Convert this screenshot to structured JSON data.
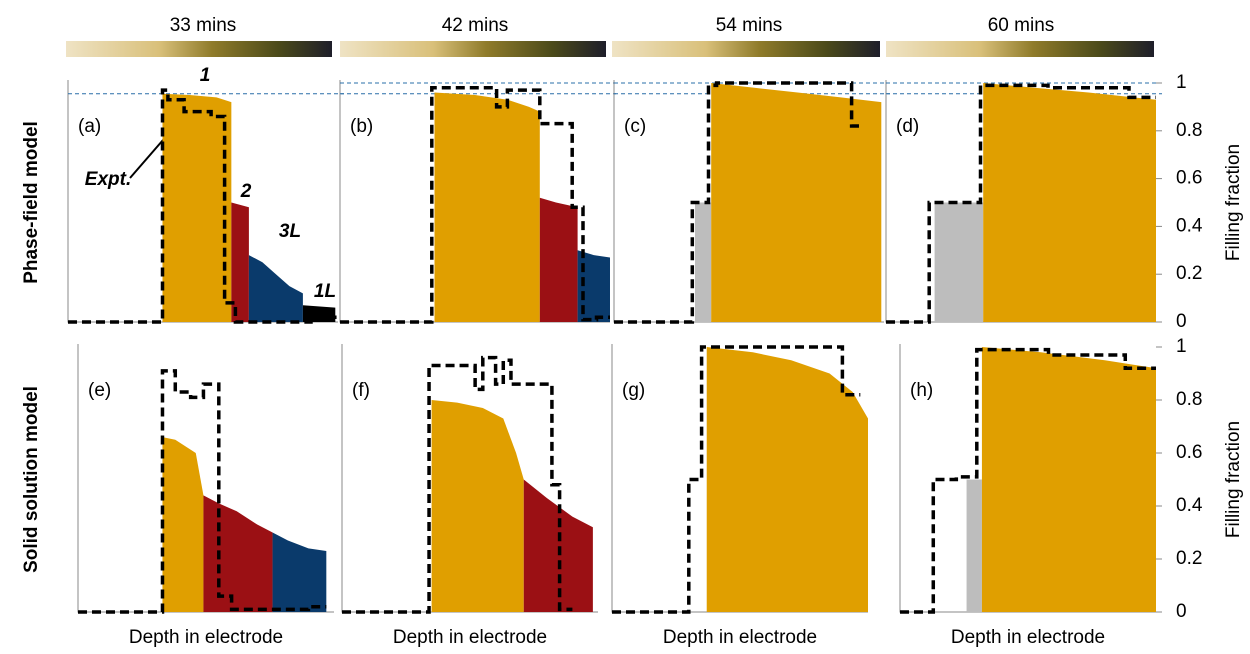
{
  "chart_data": [
    {
      "type": "area",
      "title": "33 mins",
      "row_label": "Phase-field model",
      "panel_label": "(a)",
      "xlim": [
        0,
        1
      ],
      "ylim": [
        0,
        1
      ],
      "reference_lines": [
        0.955
      ],
      "annotations": [
        {
          "text": "1",
          "color": "#e09f00"
        },
        {
          "text": "2",
          "color": "#9b1014"
        },
        {
          "text": "3L",
          "color": "#0a3a6b"
        },
        {
          "text": "1L",
          "color": "#000000"
        },
        {
          "text": "Expt.",
          "color": "#000000"
        }
      ],
      "series": [
        {
          "color": "#e09f00",
          "style": "fill",
          "x": [
            0.35,
            0.45,
            0.55,
            0.605
          ],
          "values": [
            0.955,
            0.95,
            0.94,
            0.92
          ]
        },
        {
          "color": "#9b1014",
          "style": "fill",
          "x": [
            0.605,
            0.67
          ],
          "values": [
            0.5,
            0.48
          ]
        },
        {
          "color": "#0a3a6b",
          "style": "fill",
          "x": [
            0.67,
            0.72,
            0.77,
            0.82,
            0.87
          ],
          "values": [
            0.28,
            0.25,
            0.2,
            0.15,
            0.12
          ]
        },
        {
          "color": "#000000",
          "style": "fill",
          "x": [
            0.87,
            0.99
          ],
          "values": [
            0.07,
            0.06
          ]
        },
        {
          "color": "#000000",
          "style": "dashed",
          "x": [
            0,
            0.35,
            0.35,
            0.37,
            0.37,
            0.43,
            0.43,
            0.53,
            0.53,
            0.58,
            0.58,
            0.62,
            0.62,
            0.9,
            0.9,
            1
          ],
          "values": [
            0,
            0,
            0.97,
            0.97,
            0.93,
            0.93,
            0.88,
            0.88,
            0.86,
            0.86,
            0.08,
            0.08,
            0,
            0,
            0.02,
            0.02
          ]
        }
      ]
    },
    {
      "type": "area",
      "title": "42 mins",
      "panel_label": "(b)",
      "xlim": [
        0,
        1
      ],
      "ylim": [
        0,
        1
      ],
      "reference_lines": [
        0.955,
        1
      ],
      "series": [
        {
          "color": "#e09f00",
          "style": "fill",
          "x": [
            0.35,
            0.5,
            0.62,
            0.7,
            0.74
          ],
          "values": [
            0.96,
            0.95,
            0.93,
            0.9,
            0.88
          ]
        },
        {
          "color": "#9b1014",
          "style": "fill",
          "x": [
            0.74,
            0.8,
            0.88
          ],
          "values": [
            0.52,
            0.5,
            0.48
          ]
        },
        {
          "color": "#0a3a6b",
          "style": "fill",
          "x": [
            0.88,
            0.94,
            1
          ],
          "values": [
            0.3,
            0.28,
            0.27
          ]
        },
        {
          "color": "#000000",
          "style": "dashed",
          "x": [
            0,
            0.34,
            0.34,
            0.58,
            0.58,
            0.62,
            0.62,
            0.74,
            0.74,
            0.86,
            0.86,
            0.9,
            0.9,
            0.95,
            0.95,
            1
          ],
          "values": [
            0,
            0,
            0.98,
            0.98,
            0.9,
            0.9,
            0.97,
            0.97,
            0.83,
            0.83,
            0.48,
            0.48,
            0.01,
            0.01,
            0.02,
            0.02
          ]
        }
      ]
    },
    {
      "type": "area",
      "title": "54 mins",
      "panel_label": "(c)",
      "xlim": [
        0,
        1
      ],
      "ylim": [
        0,
        1
      ],
      "reference_lines": [
        0.955,
        1
      ],
      "series": [
        {
          "color": "#bdbdbd",
          "style": "fill",
          "x": [
            0.3,
            0.36
          ],
          "values": [
            0.5,
            0.5
          ]
        },
        {
          "color": "#e09f00",
          "style": "fill",
          "x": [
            0.36,
            0.52,
            0.68,
            0.84,
            0.99
          ],
          "values": [
            1,
            0.98,
            0.96,
            0.94,
            0.92
          ]
        },
        {
          "color": "#000000",
          "style": "dashed",
          "x": [
            0,
            0.29,
            0.29,
            0.35,
            0.35,
            0.38,
            0.38,
            0.88,
            0.88,
            0.92
          ],
          "values": [
            0,
            0,
            0.5,
            0.5,
            0.99,
            0.99,
            1,
            1,
            0.82,
            0.82
          ]
        }
      ]
    },
    {
      "type": "area",
      "title": "60 mins",
      "panel_label": "(d)",
      "ylabel": "Filling fraction",
      "xlim": [
        0,
        1
      ],
      "ylim": [
        0,
        1
      ],
      "reference_lines": [
        0.955,
        1
      ],
      "yticks": [
        0,
        0.2,
        0.4,
        0.6,
        0.8,
        1
      ],
      "series": [
        {
          "color": "#bdbdbd",
          "style": "fill",
          "x": [
            0.18,
            0.36
          ],
          "values": [
            0.5,
            0.5
          ]
        },
        {
          "color": "#e09f00",
          "style": "fill",
          "x": [
            0.36,
            0.55,
            0.75,
            1
          ],
          "values": [
            1,
            0.98,
            0.96,
            0.93
          ]
        },
        {
          "color": "#000000",
          "style": "dashed",
          "x": [
            0,
            0.16,
            0.16,
            0.35,
            0.35,
            0.6,
            0.6,
            0.9,
            0.9,
            1
          ],
          "values": [
            0,
            0,
            0.5,
            0.5,
            0.99,
            0.99,
            0.98,
            0.98,
            0.94,
            0.94
          ]
        }
      ]
    },
    {
      "type": "area",
      "row_label": "Solid solution model",
      "panel_label": "(e)",
      "xlabel": "Depth in electrode",
      "xlim": [
        0,
        1
      ],
      "ylim": [
        0,
        1
      ],
      "series": [
        {
          "color": "#e09f00",
          "style": "fill",
          "x": [
            0.33,
            0.38,
            0.46,
            0.49
          ],
          "values": [
            0.66,
            0.65,
            0.6,
            0.44
          ]
        },
        {
          "color": "#9b1014",
          "style": "fill",
          "x": [
            0.49,
            0.55,
            0.62,
            0.7,
            0.76
          ],
          "values": [
            0.44,
            0.41,
            0.38,
            0.33,
            0.3
          ]
        },
        {
          "color": "#0a3a6b",
          "style": "fill",
          "x": [
            0.76,
            0.82,
            0.9,
            0.97
          ],
          "values": [
            0.3,
            0.27,
            0.24,
            0.23
          ]
        },
        {
          "color": "#000000",
          "style": "dashed",
          "x": [
            0,
            0.33,
            0.33,
            0.38,
            0.38,
            0.44,
            0.44,
            0.49,
            0.49,
            0.55,
            0.55,
            0.6,
            0.6,
            0.9,
            0.9,
            0.97
          ],
          "values": [
            0,
            0,
            0.91,
            0.91,
            0.83,
            0.83,
            0.81,
            0.81,
            0.86,
            0.86,
            0.06,
            0.06,
            0.01,
            0.01,
            0.02,
            0.02
          ]
        }
      ]
    },
    {
      "type": "area",
      "panel_label": "(f)",
      "xlabel": "Depth in electrode",
      "xlim": [
        0,
        1
      ],
      "ylim": [
        0,
        1
      ],
      "series": [
        {
          "color": "#e09f00",
          "style": "fill",
          "x": [
            0.35,
            0.45,
            0.55,
            0.63,
            0.68,
            0.71
          ],
          "values": [
            0.8,
            0.79,
            0.77,
            0.73,
            0.6,
            0.5
          ]
        },
        {
          "color": "#9b1014",
          "style": "fill",
          "x": [
            0.71,
            0.8,
            0.9,
            0.98
          ],
          "values": [
            0.5,
            0.43,
            0.36,
            0.32
          ]
        },
        {
          "color": "#000000",
          "style": "dashed",
          "x": [
            0,
            0.34,
            0.34,
            0.52,
            0.52,
            0.55,
            0.55,
            0.6,
            0.6,
            0.63,
            0.63,
            0.66,
            0.66,
            0.82,
            0.82,
            0.85,
            0.85,
            0.9
          ],
          "values": [
            0,
            0,
            0.93,
            0.93,
            0.84,
            0.84,
            0.96,
            0.96,
            0.86,
            0.86,
            0.95,
            0.95,
            0.86,
            0.86,
            0.48,
            0.48,
            0.01,
            0.01
          ]
        }
      ]
    },
    {
      "type": "area",
      "panel_label": "(g)",
      "xlabel": "Depth in electrode",
      "xlim": [
        0,
        1
      ],
      "ylim": [
        0,
        1
      ],
      "series": [
        {
          "color": "#e09f00",
          "style": "fill",
          "x": [
            0.37,
            0.55,
            0.7,
            0.85,
            0.94,
            1
          ],
          "values": [
            1,
            0.98,
            0.95,
            0.9,
            0.83,
            0.73
          ]
        },
        {
          "color": "#000000",
          "style": "dashed",
          "x": [
            0,
            0.3,
            0.3,
            0.35,
            0.35,
            0.9,
            0.9,
            0.97
          ],
          "values": [
            0,
            0,
            0.5,
            0.5,
            1,
            1,
            0.82,
            0.82
          ]
        }
      ]
    },
    {
      "type": "area",
      "panel_label": "(h)",
      "xlabel": "Depth in electrode",
      "ylabel": "Filling fraction",
      "xlim": [
        0,
        1
      ],
      "ylim": [
        0,
        1
      ],
      "yticks": [
        0,
        0.2,
        0.4,
        0.6,
        0.8,
        1
      ],
      "series": [
        {
          "color": "#bdbdbd",
          "style": "fill",
          "x": [
            0.26,
            0.32
          ],
          "values": [
            0.5,
            0.5
          ]
        },
        {
          "color": "#e09f00",
          "style": "fill",
          "x": [
            0.32,
            0.55,
            0.8,
            1
          ],
          "values": [
            1,
            0.98,
            0.95,
            0.92
          ]
        },
        {
          "color": "#000000",
          "style": "dashed",
          "x": [
            0,
            0.13,
            0.13,
            0.22,
            0.22,
            0.3,
            0.3,
            0.58,
            0.58,
            0.88,
            0.88,
            1
          ],
          "values": [
            0,
            0,
            0.5,
            0.5,
            0.51,
            0.51,
            0.99,
            0.99,
            0.97,
            0.97,
            0.92,
            0.92
          ]
        }
      ]
    }
  ]
}
